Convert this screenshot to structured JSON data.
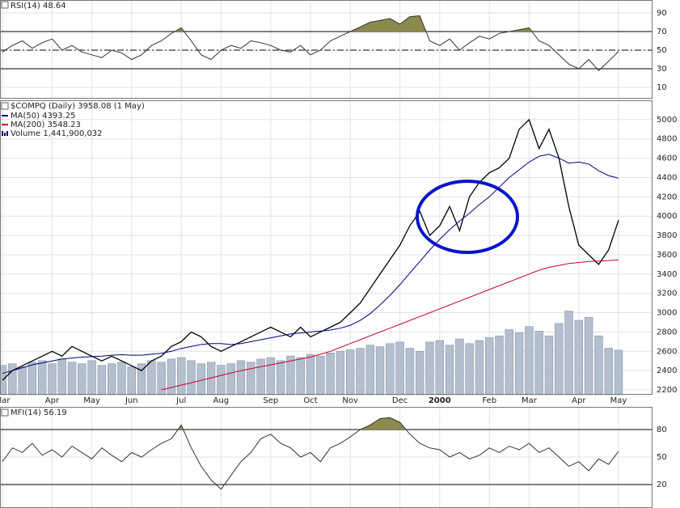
{
  "chart_data": [
    {
      "type": "line",
      "title": "RSI(14) 48.64",
      "ylim": [
        0,
        100
      ],
      "yticks": [
        10,
        30,
        50,
        70,
        90
      ],
      "bands": [
        30,
        70
      ],
      "midline": 50,
      "fill_color": "#8b8a4b",
      "color": "#333333",
      "grid": true,
      "values": [
        48,
        55,
        60,
        52,
        58,
        62,
        50,
        55,
        48,
        45,
        42,
        50,
        47,
        40,
        45,
        55,
        60,
        68,
        74,
        60,
        45,
        40,
        50,
        55,
        52,
        60,
        58,
        55,
        50,
        48,
        55,
        45,
        50,
        60,
        65,
        70,
        75,
        80,
        82,
        84,
        78,
        86,
        87,
        60,
        55,
        62,
        50,
        58,
        65,
        62,
        68,
        70,
        72,
        74,
        60,
        55,
        45,
        35,
        30,
        40,
        28,
        38,
        48.64
      ]
    },
    {
      "type": "line",
      "title": "$COMPQ (Daily) 3958.08 (1 May)",
      "ylim": [
        2150,
        5200
      ],
      "yticks": [
        2200,
        2400,
        2600,
        2800,
        3000,
        3200,
        3400,
        3600,
        3800,
        4000,
        4200,
        4400,
        4600,
        4800,
        5000
      ],
      "y2lim": [
        0,
        9500000000
      ],
      "grid": true,
      "categories": [
        "Mar",
        null,
        null,
        null,
        null,
        "Apr",
        null,
        null,
        null,
        "May",
        null,
        null,
        null,
        "Jun",
        null,
        null,
        null,
        null,
        "Jul",
        null,
        null,
        null,
        "Aug",
        null,
        null,
        null,
        null,
        "Sep",
        null,
        null,
        null,
        "Oct",
        null,
        null,
        null,
        "Nov",
        null,
        null,
        null,
        null,
        "Dec",
        null,
        null,
        null,
        "2000",
        null,
        null,
        null,
        null,
        "Feb",
        null,
        null,
        null,
        "Mar",
        null,
        null,
        null,
        null,
        "Apr",
        null,
        null,
        null,
        "May"
      ],
      "series": [
        {
          "color": "#000000",
          "values": [
            2300,
            2400,
            2450,
            2500,
            2550,
            2600,
            2550,
            2650,
            2600,
            2550,
            2500,
            2550,
            2500,
            2450,
            2400,
            2500,
            2550,
            2650,
            2700,
            2800,
            2750,
            2650,
            2600,
            2650,
            2700,
            2750,
            2800,
            2850,
            2800,
            2750,
            2850,
            2750,
            2800,
            2850,
            2900,
            3000,
            3100,
            3250,
            3400,
            3550,
            3700,
            3900,
            4050,
            3800,
            3900,
            4100,
            3850,
            4200,
            4350,
            4450,
            4500,
            4600,
            4900,
            5000,
            4700,
            4900,
            4600,
            4100,
            3700,
            3600,
            3500,
            3650,
            3958.08
          ]
        },
        {
          "name": "MA(50) 4393.25",
          "color": "#000080",
          "values": [
            2370,
            2400,
            2430,
            2460,
            2480,
            2500,
            2520,
            2530,
            2540,
            2545,
            2550,
            2560,
            2565,
            2560,
            2560,
            2570,
            2580,
            2600,
            2630,
            2650,
            2670,
            2680,
            2680,
            2670,
            2680,
            2700,
            2720,
            2740,
            2760,
            2780,
            2790,
            2800,
            2810,
            2820,
            2840,
            2870,
            2920,
            2990,
            3080,
            3180,
            3290,
            3410,
            3530,
            3650,
            3760,
            3860,
            3950,
            4030,
            4120,
            4200,
            4300,
            4400,
            4480,
            4560,
            4620,
            4640,
            4600,
            4550,
            4560,
            4540,
            4470,
            4420,
            4393.25
          ]
        },
        {
          "name": "MA(200) 3548.23",
          "color": "#cc0033",
          "values": [
            null,
            null,
            null,
            null,
            null,
            null,
            null,
            null,
            null,
            null,
            null,
            null,
            null,
            null,
            null,
            null,
            2200,
            2225,
            2250,
            2275,
            2300,
            2325,
            2350,
            2375,
            2400,
            2420,
            2440,
            2460,
            2480,
            2500,
            2520,
            2540,
            2570,
            2600,
            2640,
            2680,
            2720,
            2760,
            2800,
            2840,
            2880,
            2920,
            2960,
            3000,
            3040,
            3080,
            3120,
            3160,
            3200,
            3240,
            3280,
            3320,
            3360,
            3400,
            3440,
            3470,
            3490,
            3510,
            3520,
            3530,
            3535,
            3540,
            3548.23
          ]
        },
        {
          "name": "Volume 1,441,900,032",
          "type": "bar",
          "axis": "y2",
          "color": "#b4bfcd",
          "values": [
            950000000,
            1000000000,
            900000000,
            1050000000,
            1100000000,
            1000000000,
            1150000000,
            1050000000,
            1000000000,
            1100000000,
            950000000,
            1000000000,
            1050000000,
            900000000,
            1000000000,
            1100000000,
            1050000000,
            1150000000,
            1200000000,
            1100000000,
            1000000000,
            1050000000,
            950000000,
            1000000000,
            1100000000,
            1050000000,
            1150000000,
            1200000000,
            1100000000,
            1250000000,
            1200000000,
            1300000000,
            1250000000,
            1350000000,
            1400000000,
            1450000000,
            1500000000,
            1600000000,
            1550000000,
            1650000000,
            1700000000,
            1500000000,
            1400000000,
            1700000000,
            1750000000,
            1600000000,
            1800000000,
            1650000000,
            1750000000,
            1850000000,
            1900000000,
            2100000000,
            2000000000,
            2200000000,
            2050000000,
            1900000000,
            2300000000,
            2700000000,
            2400000000,
            2500000000,
            1900000000,
            1500000000,
            1441900032
          ]
        }
      ]
    },
    {
      "type": "line",
      "title": "MFI(14) 56.19",
      "ylim": [
        0,
        100
      ],
      "yticks": [
        20,
        50,
        80
      ],
      "bands": [
        20,
        80
      ],
      "fill_color": "#8b8a4b",
      "color": "#333333",
      "grid": true,
      "values": [
        45,
        60,
        55,
        65,
        52,
        58,
        50,
        62,
        55,
        48,
        60,
        52,
        45,
        55,
        50,
        58,
        65,
        70,
        85,
        60,
        40,
        25,
        15,
        30,
        45,
        55,
        70,
        75,
        65,
        60,
        50,
        55,
        45,
        60,
        65,
        72,
        80,
        85,
        92,
        93,
        88,
        75,
        65,
        60,
        58,
        50,
        55,
        48,
        52,
        60,
        55,
        62,
        58,
        65,
        55,
        60,
        50,
        40,
        45,
        35,
        48,
        42,
        56.19
      ]
    }
  ]
}
